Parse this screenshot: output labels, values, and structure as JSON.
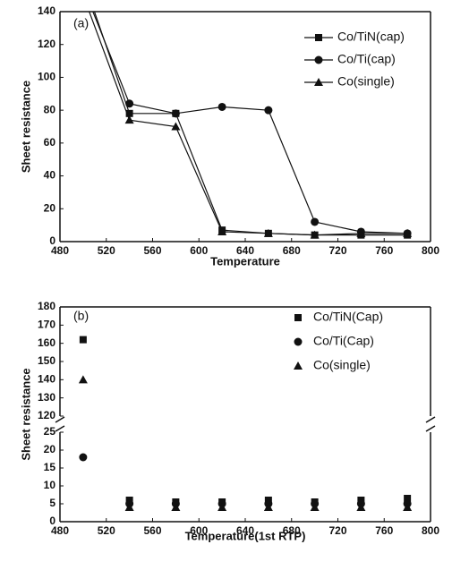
{
  "chart_data": [
    {
      "type": "line",
      "annotation": "(a)",
      "x_label": "Temperature",
      "y_label": "Sheet resistance",
      "x": [
        500,
        540,
        580,
        620,
        660,
        700,
        740,
        780
      ],
      "series": [
        {
          "name": "Co/TiN(cap)",
          "color": "#111111",
          "marker": "square",
          "values": [
            160,
            78,
            78,
            7,
            5,
            4,
            4,
            4
          ]
        },
        {
          "name": "Co/Ti(cap)",
          "color": "#111111",
          "marker": "circle",
          "values": [
            155,
            84,
            78,
            82,
            80,
            12,
            6,
            5
          ]
        },
        {
          "name": "Co(single)",
          "color": "#111111",
          "marker": "triangle",
          "values": [
            150,
            74,
            70,
            6,
            5,
            4,
            5,
            5
          ]
        }
      ],
      "xlim": [
        480,
        800
      ],
      "xticks": [
        480,
        520,
        560,
        600,
        640,
        680,
        720,
        760,
        800
      ],
      "ylim": [
        0,
        140
      ],
      "yticks": [
        0,
        20,
        40,
        60,
        80,
        100,
        120,
        140
      ],
      "grid": false,
      "legend": "upper right"
    },
    {
      "type": "scatter",
      "annotation": "(b)",
      "x_label": "Temperature(1st RTP)",
      "y_label": "Sheet resistance",
      "x": [
        500,
        540,
        580,
        620,
        660,
        700,
        740,
        780
      ],
      "series": [
        {
          "name": "Co/TiN(Cap)",
          "color": "#111111",
          "marker": "square",
          "values": [
            162,
            6,
            5.5,
            5.5,
            6,
            5.5,
            6,
            6.5
          ]
        },
        {
          "name": "Co/Ti(Cap)",
          "color": "#111111",
          "marker": "circle",
          "values": [
            18,
            5,
            5,
            5,
            5,
            5,
            5,
            5
          ]
        },
        {
          "name": "Co(single)",
          "color": "#111111",
          "marker": "triangle",
          "values": [
            140,
            4,
            4,
            4,
            4,
            4,
            4,
            4
          ]
        }
      ],
      "xlim": [
        480,
        800
      ],
      "xticks": [
        480,
        520,
        560,
        600,
        640,
        680,
        720,
        760,
        800
      ],
      "ylim": [
        0,
        180
      ],
      "ybreak": [
        25,
        120
      ],
      "yticks": [
        0,
        5,
        10,
        15,
        20,
        25,
        120,
        130,
        140,
        150,
        160,
        170,
        180
      ],
      "grid": false,
      "legend": "upper right"
    }
  ]
}
